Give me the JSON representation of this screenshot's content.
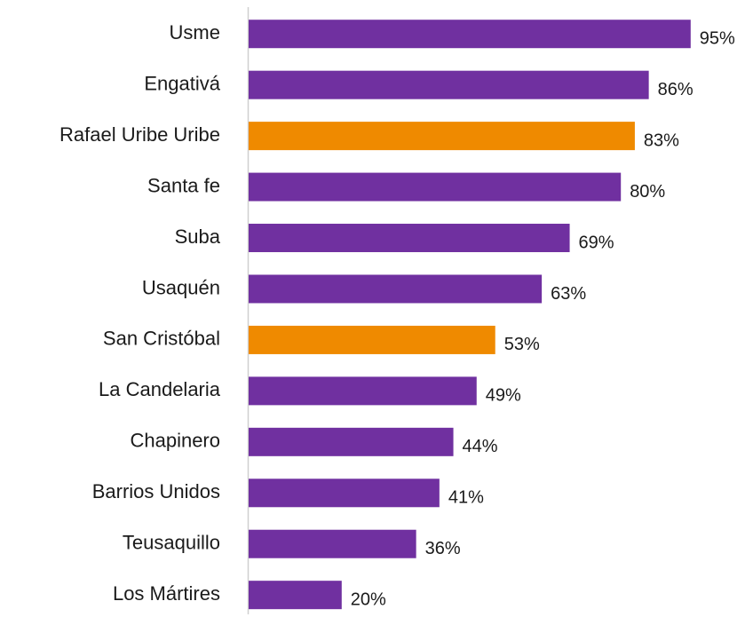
{
  "chart_data": {
    "type": "barh",
    "categories": [
      "Usme",
      "Engativá",
      "Rafael Uribe Uribe",
      "Santa fe",
      "Suba",
      "Usaquén",
      "San Cristóbal",
      "La Candelaria",
      "Chapinero",
      "Barrios Unidos",
      "Teusaquillo",
      "Los Mártires"
    ],
    "values": [
      95,
      86,
      83,
      80,
      69,
      63,
      53,
      49,
      44,
      41,
      36,
      20
    ],
    "value_labels": [
      "95%",
      "86%",
      "83%",
      "80%",
      "69%",
      "63%",
      "53%",
      "49%",
      "44%",
      "41%",
      "36%",
      "20%"
    ],
    "colors": [
      "#7030a0",
      "#7030a0",
      "#ef8a00",
      "#7030a0",
      "#7030a0",
      "#7030a0",
      "#ef8a00",
      "#7030a0",
      "#7030a0",
      "#7030a0",
      "#7030a0",
      "#7030a0"
    ],
    "xlim": [
      0,
      100
    ]
  }
}
